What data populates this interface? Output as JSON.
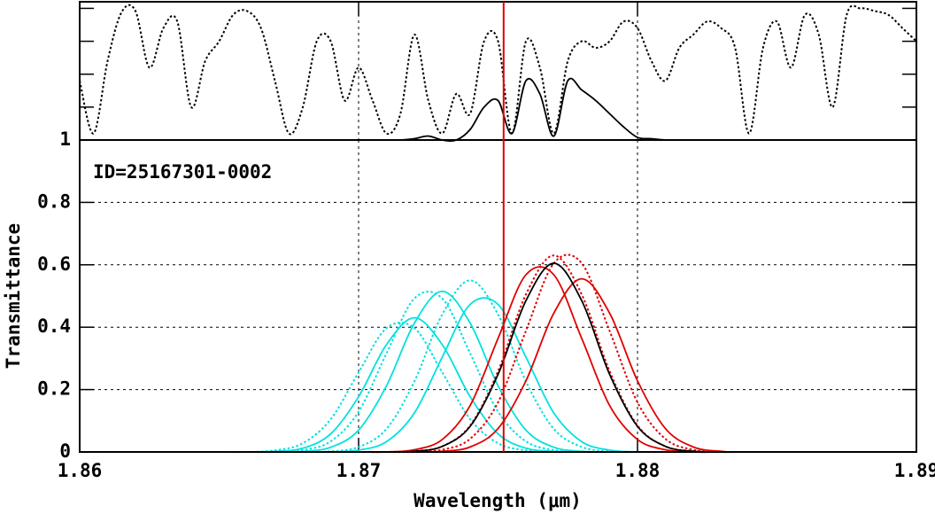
{
  "chart_data": [
    {
      "type": "line",
      "xlim": [
        1.86,
        1.89
      ],
      "ylim": [
        0,
        1.05
      ],
      "yticks": [
        0.25,
        0.5,
        0.75,
        1
      ],
      "ytick_labels": false,
      "x": [
        1.86,
        1.8605,
        1.861,
        1.8615,
        1.862,
        1.8625,
        1.863,
        1.8635,
        1.864,
        1.8645,
        1.865,
        1.8655,
        1.866,
        1.8665,
        1.867,
        1.8675,
        1.868,
        1.8685,
        1.869,
        1.8695,
        1.87,
        1.8705,
        1.871,
        1.8715,
        1.872,
        1.8725,
        1.873,
        1.8735,
        1.874,
        1.8745,
        1.875,
        1.8755,
        1.876,
        1.8765,
        1.877,
        1.8775,
        1.878,
        1.8785,
        1.879,
        1.8795,
        1.88,
        1.8805,
        1.881,
        1.8815,
        1.882,
        1.8825,
        1.883,
        1.8835,
        1.884,
        1.8845,
        1.885,
        1.8855,
        1.886,
        1.8865,
        1.887,
        1.8875,
        1.888,
        1.8885,
        1.889,
        1.8895,
        1.89
      ],
      "series": [
        {
          "color": "#000000",
          "style": "dotted",
          "values": [
            0.45,
            0.05,
            0.6,
            0.97,
            0.98,
            0.55,
            0.85,
            0.9,
            0.25,
            0.6,
            0.75,
            0.95,
            0.98,
            0.85,
            0.45,
            0.05,
            0.25,
            0.75,
            0.75,
            0.3,
            0.55,
            0.3,
            0.05,
            0.2,
            0.8,
            0.3,
            0.05,
            0.35,
            0.2,
            0.75,
            0.75,
            0.05,
            0.75,
            0.55,
            0.05,
            0.6,
            0.75,
            0.7,
            0.75,
            0.9,
            0.85,
            0.6,
            0.45,
            0.7,
            0.8,
            0.9,
            0.85,
            0.7,
            0.05,
            0.7,
            0.9,
            0.55,
            0.95,
            0.8,
            0.25,
            0.95,
            1.0,
            0.98,
            0.95,
            0.85,
            0.75
          ]
        },
        {
          "color": "#000000",
          "style": "solid",
          "values": [
            null,
            null,
            null,
            null,
            null,
            null,
            null,
            null,
            null,
            null,
            null,
            null,
            null,
            null,
            null,
            null,
            null,
            null,
            null,
            null,
            null,
            null,
            0,
            0,
            0.01,
            0.03,
            0,
            0,
            0.08,
            0.25,
            0.3,
            0.05,
            0.45,
            0.35,
            0.03,
            0.45,
            0.38,
            0.3,
            0.2,
            0.1,
            0.02,
            0.01,
            0,
            0,
            0,
            null,
            null,
            null,
            null,
            null,
            null,
            null,
            null,
            null,
            null,
            null,
            null,
            null,
            null,
            null,
            null
          ]
        }
      ]
    },
    {
      "type": "line",
      "annotation": "ID=25167301-0002",
      "xlabel": "Wavelength (μm)",
      "ylabel": "Transmittance",
      "xlim": [
        1.86,
        1.89
      ],
      "ylim": [
        0,
        1
      ],
      "xticks": [
        1.86,
        1.87,
        1.88,
        1.89
      ],
      "yticks": [
        0,
        0.2,
        0.4,
        0.6,
        0.8,
        1
      ],
      "grid": true,
      "vline": 1.8752,
      "vline_color": "#e00000",
      "x": [
        1.86,
        1.864,
        1.865,
        1.866,
        1.867,
        1.868,
        1.869,
        1.87,
        1.871,
        1.872,
        1.873,
        1.874,
        1.875,
        1.876,
        1.877,
        1.878,
        1.879,
        1.88,
        1.881,
        1.882,
        1.883,
        1.884,
        1.89
      ],
      "series": [
        {
          "color": "#00e0e0",
          "style": "solid",
          "values": [
            0,
            0,
            0,
            0,
            0.002,
            0.012,
            0.058,
            0.177,
            0.344,
            0.43,
            0.344,
            0.177,
            0.058,
            0.012,
            0.002,
            0,
            0,
            0,
            0,
            0,
            0,
            0,
            0
          ]
        },
        {
          "color": "#00e0e0",
          "style": "solid",
          "values": [
            0,
            0,
            0,
            0,
            0,
            0.002,
            0.015,
            0.07,
            0.212,
            0.413,
            0.515,
            0.413,
            0.212,
            0.07,
            0.015,
            0.002,
            0,
            0,
            0,
            0,
            0,
            0,
            0
          ]
        },
        {
          "color": "#00e0e0",
          "style": "solid",
          "values": [
            0,
            0,
            0,
            0,
            0,
            0,
            0,
            0.006,
            0.033,
            0.125,
            0.304,
            0.473,
            0.473,
            0.304,
            0.125,
            0.033,
            0.006,
            0,
            0,
            0,
            0,
            0,
            0
          ]
        },
        {
          "color": "#00e0e0",
          "style": "dotted",
          "values": [
            0,
            0,
            0,
            0,
            0.005,
            0.028,
            0.105,
            0.255,
            0.397,
            0.397,
            0.255,
            0.105,
            0.028,
            0.005,
            0,
            0,
            0,
            0,
            0,
            0,
            0,
            0,
            0
          ]
        },
        {
          "color": "#00e0e0",
          "style": "dotted",
          "values": [
            0,
            0,
            0,
            0,
            0,
            0.006,
            0.034,
            0.129,
            0.316,
            0.492,
            0.492,
            0.316,
            0.129,
            0.034,
            0.006,
            0,
            0,
            0,
            0,
            0,
            0,
            0,
            0
          ]
        },
        {
          "color": "#00e0e0",
          "style": "dotted",
          "values": [
            0,
            0,
            0,
            0,
            0,
            0,
            0.002,
            0.016,
            0.074,
            0.226,
            0.441,
            0.55,
            0.441,
            0.226,
            0.074,
            0.016,
            0.002,
            0,
            0,
            0,
            0,
            0,
            0
          ]
        },
        {
          "color": "#e00000",
          "style": "solid",
          "values": [
            0,
            0,
            0,
            0,
            0,
            0,
            0,
            0,
            0,
            0.007,
            0.04,
            0.149,
            0.364,
            0.568,
            0.568,
            0.364,
            0.149,
            0.04,
            0.007,
            0,
            0,
            0,
            0
          ]
        },
        {
          "color": "#e00000",
          "style": "solid",
          "values": [
            0,
            0,
            0,
            0,
            0,
            0,
            0,
            0,
            0,
            0,
            0.002,
            0.016,
            0.075,
            0.228,
            0.445,
            0.555,
            0.445,
            0.228,
            0.075,
            0.016,
            0.002,
            0,
            0
          ]
        },
        {
          "color": "#e00000",
          "style": "dotted",
          "values": [
            0,
            0,
            0,
            0,
            0,
            0,
            0,
            0,
            0,
            0.003,
            0.018,
            0.085,
            0.259,
            0.505,
            0.63,
            0.505,
            0.259,
            0.085,
            0.018,
            0.003,
            0,
            0,
            0
          ]
        },
        {
          "color": "#e00000",
          "style": "dotted",
          "values": [
            0,
            0,
            0,
            0,
            0,
            0,
            0,
            0,
            0,
            0,
            0.007,
            0.042,
            0.159,
            0.388,
            0.605,
            0.605,
            0.388,
            0.159,
            0.042,
            0.007,
            0,
            0,
            0
          ]
        },
        {
          "color": "#000000",
          "style": "solid",
          "values": [
            0,
            0,
            0,
            0,
            0,
            0,
            0,
            0,
            0,
            0.002,
            0.018,
            0.082,
            0.249,
            0.485,
            0.605,
            0.485,
            0.249,
            0.082,
            0.018,
            0.002,
            0,
            0,
            0
          ]
        }
      ]
    }
  ]
}
